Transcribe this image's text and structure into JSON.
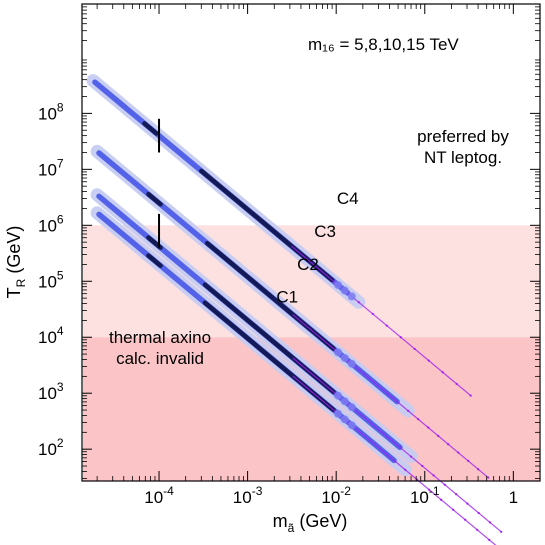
{
  "chart_data": {
    "type": "line",
    "x_scale": "log",
    "y_scale": "log",
    "xlabel": "m",
    "xlabel_sub": "ã",
    "xlabel_unit": "(GeV)",
    "ylabel": "T",
    "ylabel_sub": "R",
    "ylabel_unit": "(GeV)",
    "xlim": [
      1.35e-05,
      2.0
    ],
    "ylim": [
      27,
      9000000000
    ],
    "x_ticks": [
      {
        "value": 0.0001,
        "base": "10",
        "exp": "-4"
      },
      {
        "value": 0.001,
        "base": "10",
        "exp": "-3"
      },
      {
        "value": 0.01,
        "base": "10",
        "exp": "-2"
      },
      {
        "value": 0.1,
        "base": "10",
        "exp": "-1"
      },
      {
        "value": 1,
        "base": "1",
        "exp": ""
      }
    ],
    "y_ticks": [
      {
        "value": 100,
        "base": "10",
        "exp": "2"
      },
      {
        "value": 1000,
        "base": "10",
        "exp": "3"
      },
      {
        "value": 10000,
        "base": "10",
        "exp": "4"
      },
      {
        "value": 100000,
        "base": "10",
        "exp": "5"
      },
      {
        "value": 1000000,
        "base": "10",
        "exp": "6"
      },
      {
        "value": 10000000,
        "base": "10",
        "exp": "7"
      },
      {
        "value": 100000000,
        "base": "10",
        "exp": "8"
      }
    ],
    "annotation": "m₁₆ = 5,8,10,15 TeV",
    "regions": [
      {
        "name": "preferred-region",
        "label_lines": [
          "preferred by",
          "NT leptog."
        ],
        "y_range": [
          10000,
          1000000
        ],
        "color": "#fde0e0"
      },
      {
        "name": "invalid-region",
        "label_lines": [
          "thermal axino",
          "calc. invalid"
        ],
        "y_range": [
          27,
          10000
        ],
        "color": "#fbc4c6"
      }
    ],
    "series": [
      {
        "name": "C1",
        "x_start": 2e-05,
        "x_end": 0.73,
        "slope": -1.32,
        "y_at_1e-4": 200000,
        "band_end": 0.06,
        "core_start": 0.00033,
        "core_end": 0.0093
      },
      {
        "name": "C2",
        "x_start": 2e-05,
        "x_end": 0.73,
        "slope": -1.32,
        "y_at_1e-4": 420000,
        "band_end": 0.07,
        "core_start": 0.00033,
        "core_end": 0.0093
      },
      {
        "name": "C3",
        "x_start": 2e-05,
        "x_end": 0.52,
        "slope": -1.32,
        "y_at_1e-4": 2500000,
        "band_end": 0.065,
        "core_start": 0.00035,
        "core_end": 0.0093
      },
      {
        "name": "C4",
        "x_start": 1.8e-05,
        "x_end": 0.33,
        "slope": -1.32,
        "y_at_1e-4": 40000000,
        "band_end": 0.018,
        "core_start": 0.0003,
        "core_end": 0.009
      }
    ],
    "markers": [
      {
        "name": "C4-marker",
        "x": 0.0001,
        "y_from": 20000000,
        "y_to": 80000000
      },
      {
        "name": "C3-marker",
        "x": 0.0001,
        "y_from": 400000,
        "y_to": 1600000
      }
    ],
    "colors": {
      "band": "#c7cdf2",
      "mid": "#4757e8",
      "core": "#141a55",
      "dots": "#a020f0",
      "dot_blob": "#7d7cf0"
    }
  }
}
